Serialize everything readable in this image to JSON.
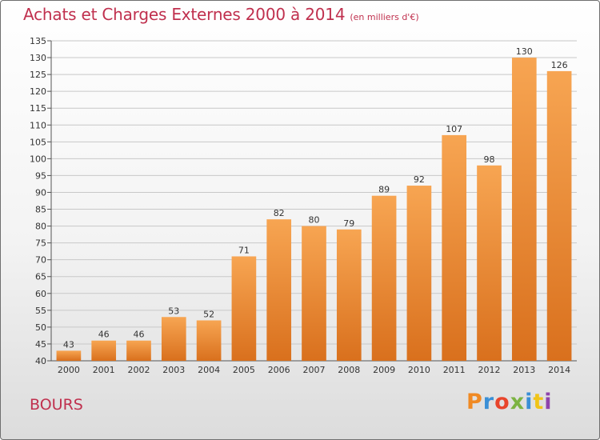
{
  "header": {
    "title": "Achats et Charges Externes 2000 à 2014",
    "subtitle": "(en milliers d'€)"
  },
  "footer": {
    "commune": "BOURS",
    "logo": "Proxiti",
    "logo_colors": [
      "#f08a24",
      "#3a8fd6",
      "#e8452c",
      "#7cb342",
      "#3a8fd6",
      "#f0c419",
      "#8e44ad"
    ]
  },
  "colors": {
    "bar_light": "#f7a552",
    "bar_dark": "#d9701d",
    "title": "#c0304e",
    "grid": "#c8c8c8"
  },
  "chart_data": {
    "type": "bar",
    "title": "Achats et Charges Externes 2000 à 2014",
    "categories": [
      "2000",
      "2001",
      "2002",
      "2003",
      "2004",
      "2005",
      "2006",
      "2007",
      "2008",
      "2009",
      "2010",
      "2011",
      "2012",
      "2013",
      "2014"
    ],
    "values": [
      43,
      46,
      46,
      53,
      52,
      71,
      82,
      80,
      79,
      89,
      92,
      107,
      98,
      130,
      126
    ],
    "ylim": [
      40,
      135
    ],
    "ytick_step": 5,
    "grid": true
  }
}
